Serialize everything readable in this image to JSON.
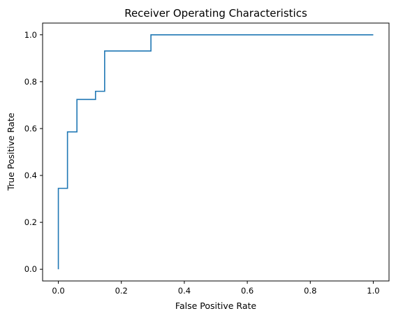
{
  "chart_data": {
    "type": "line",
    "title": "Receiver Operating Characteristics",
    "xlabel": "False Positive Rate",
    "ylabel": "True Positive Rate",
    "xlim": [
      -0.05,
      1.05
    ],
    "ylim": [
      -0.05,
      1.05
    ],
    "grid": false,
    "legend": "none",
    "color": "#1f77b4",
    "x_ticks": [
      "0.0",
      "0.2",
      "0.4",
      "0.6",
      "0.8",
      "1.0"
    ],
    "y_ticks": [
      "0.0",
      "0.2",
      "0.4",
      "0.6",
      "0.8",
      "1.0"
    ],
    "series": [
      {
        "x": [
          0.0,
          0.0,
          0.0,
          0.029,
          0.029,
          0.059,
          0.059,
          0.118,
          0.118,
          0.147,
          0.147,
          0.294,
          0.294,
          1.0
        ],
        "y": [
          0.0,
          0.345,
          0.345,
          0.345,
          0.586,
          0.586,
          0.724,
          0.724,
          0.759,
          0.759,
          0.931,
          0.931,
          1.0,
          1.0
        ]
      }
    ]
  }
}
